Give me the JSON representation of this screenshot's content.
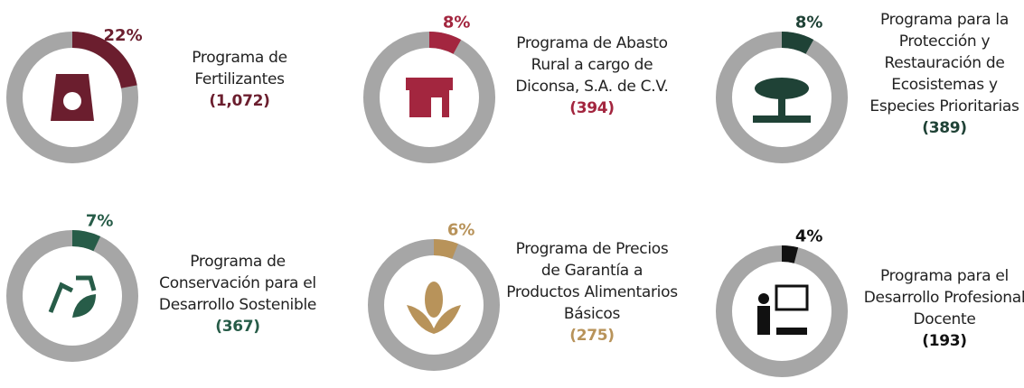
{
  "chart_data": [
    {
      "type": "donut",
      "title": "Programa de Fertilizantes",
      "subtitle": "(1,072)",
      "values": [
        22
      ],
      "value_labels": [
        "22%"
      ],
      "color": "#6b1e2e"
    },
    {
      "type": "donut",
      "title": "Programa de Abasto Rural a cargo de Diconsa, S.A. de C.V.",
      "subtitle": "(394)",
      "values": [
        8
      ],
      "value_labels": [
        "8%"
      ],
      "color": "#a3263f"
    },
    {
      "type": "donut",
      "title": "Programa para la Protección y Restauración de Ecosistemas y Especies Prioritarias",
      "subtitle": "(389)",
      "values": [
        8
      ],
      "value_labels": [
        "8%"
      ],
      "color": "#1f4236"
    },
    {
      "type": "donut",
      "title": "Programa de Conservación para el Desarrollo Sostenible",
      "subtitle": "(367)",
      "values": [
        7
      ],
      "value_labels": [
        "7%"
      ],
      "color": "#275c48"
    },
    {
      "type": "donut",
      "title": "Programa de Precios de Garantía a Productos Alimentarios Básicos",
      "subtitle": "(275)",
      "values": [
        6
      ],
      "value_labels": [
        "6%"
      ],
      "color": "#b8935a"
    },
    {
      "type": "donut",
      "title": "Programa para el Desarrollo Profesional Docente",
      "subtitle": "(193)",
      "values": [
        4
      ],
      "value_labels": [
        "4%"
      ],
      "color": "#111111"
    }
  ]
}
